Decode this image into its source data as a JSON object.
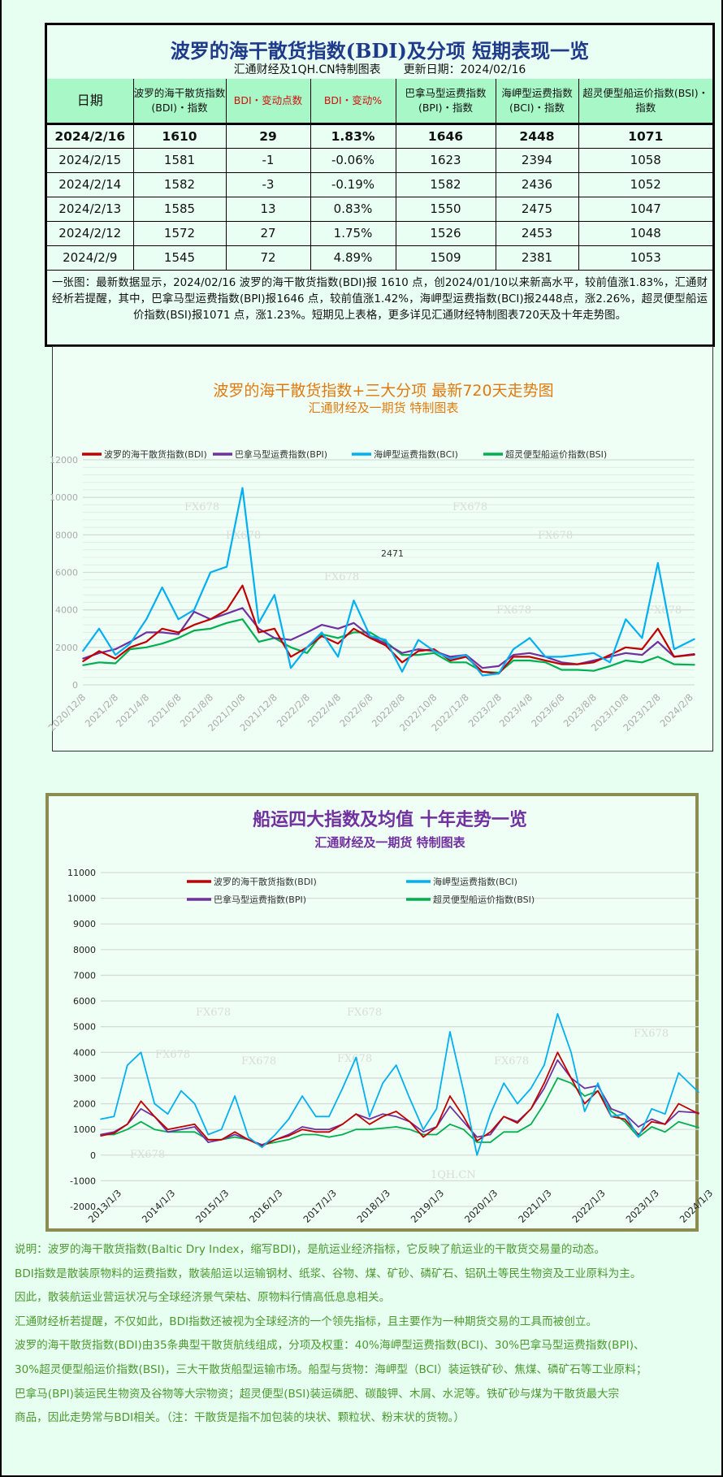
{
  "summary_table": {
    "title": "波罗的海干散货指数(BDI)及分项 短期表现一览",
    "subtitle": "汇通财经及1QH.CN特制图表　　更新日期：2024/02/16",
    "headers": [
      "日期",
      "波罗的海干散货指数(BDI)・指数",
      "BDI・变动点数",
      "BDI・变动%",
      "巴拿马型运费指数(BPI)・指数",
      "海岬型运费指数(BCI)・指数",
      "超灵便型船运价指数(BSI)・指数"
    ],
    "rows": [
      [
        "2024/2/16",
        "1610",
        "29",
        "1.83%",
        "1646",
        "2448",
        "1071"
      ],
      [
        "2024/2/15",
        "1581",
        "-1",
        "-0.06%",
        "1623",
        "2394",
        "1058"
      ],
      [
        "2024/2/14",
        "1582",
        "-3",
        "-0.19%",
        "1582",
        "2436",
        "1052"
      ],
      [
        "2024/2/13",
        "1585",
        "13",
        "0.83%",
        "1550",
        "2475",
        "1047"
      ],
      [
        "2024/2/12",
        "1572",
        "27",
        "1.75%",
        "1526",
        "2453",
        "1048"
      ],
      [
        "2024/2/9",
        "1545",
        "72",
        "4.89%",
        "1509",
        "2381",
        "1053"
      ]
    ],
    "description": "一张图：最新数据显示，2024/02/16 波罗的海干散货指数(BDI)报 1610 点，创2024/01/10以来新高水平，较前值涨1.83%，汇通财经析若提醒，其中，巴拿马型运费指数(BPI)报1646 点，较前值涨1.42%，海岬型运费指数(BCI)报2448点，涨2.26%，超灵便型船运价指数(BSI)报1071 点，涨1.23%。短期见上表格，更多详见汇通财经特制图表720天及十年走势图。",
    "colors": {
      "header_bg": "#a8f7c6",
      "highlight_text": "#d01010",
      "title": "#1f3a8a"
    }
  },
  "chart_data": [
    {
      "type": "line",
      "title": "波罗的海干散货指数+三大分项  最新720天走势图",
      "subtitle": "汇通财经及一期货  特制图表",
      "title_color": "#e07a10",
      "ylim": [
        0,
        12000
      ],
      "yticks": [
        0,
        2000,
        4000,
        6000,
        8000,
        10000,
        12000
      ],
      "xticks": [
        "2020/12/8",
        "2021/2/8",
        "2021/4/8",
        "2021/6/8",
        "2021/8/8",
        "2021/10/8",
        "2021/12/8",
        "2022/2/8",
        "2022/4/8",
        "2022/6/8",
        "2022/8/8",
        "2022/10/8",
        "2022/12/8",
        "2023/2/8",
        "2023/4/8",
        "2023/6/8",
        "2023/8/8",
        "2023/10/8",
        "2023/12/8",
        "2024/2/8"
      ],
      "grid": true,
      "legend": "top",
      "annotation": "2471",
      "watermarks": [
        "FX678",
        "FX678",
        "FX678",
        "FX678",
        "FX678",
        "FX678",
        "FX678"
      ],
      "x": [
        "2020/12/8",
        "2021/1/8",
        "2021/2/8",
        "2021/3/8",
        "2021/4/8",
        "2021/5/8",
        "2021/6/8",
        "2021/7/8",
        "2021/8/8",
        "2021/9/8",
        "2021/10/8",
        "2021/11/8",
        "2021/12/8",
        "2022/1/8",
        "2022/2/8",
        "2022/3/8",
        "2022/4/8",
        "2022/5/8",
        "2022/6/8",
        "2022/7/8",
        "2022/8/8",
        "2022/9/8",
        "2022/10/8",
        "2022/11/8",
        "2022/12/8",
        "2023/1/8",
        "2023/2/8",
        "2023/3/8",
        "2023/4/8",
        "2023/5/8",
        "2023/6/8",
        "2023/7/8",
        "2023/8/8",
        "2023/9/8",
        "2023/10/8",
        "2023/11/8",
        "2023/12/8",
        "2024/1/8",
        "2024/2/16"
      ],
      "series": [
        {
          "name": "波罗的海干散货指数(BDI)",
          "color": "#c00000",
          "values": [
            1250,
            1800,
            1400,
            2000,
            2300,
            3000,
            2800,
            3200,
            3500,
            4000,
            5300,
            2800,
            3000,
            1500,
            2000,
            2600,
            2200,
            3000,
            2500,
            2100,
            1200,
            1800,
            1900,
            1300,
            1500,
            700,
            600,
            1500,
            1500,
            1300,
            1100,
            1100,
            1200,
            1600,
            2000,
            1900,
            3000,
            1500,
            1610
          ]
        },
        {
          "name": "巴拿马型运费指数(BPI)",
          "color": "#7030a0",
          "values": [
            1400,
            1700,
            1900,
            2300,
            2800,
            2800,
            2700,
            3900,
            3500,
            3800,
            4100,
            3000,
            2500,
            2400,
            2800,
            3200,
            3000,
            3300,
            2600,
            2200,
            1700,
            1900,
            1800,
            1500,
            1600,
            900,
            1000,
            1600,
            1700,
            1500,
            1200,
            1100,
            1300,
            1500,
            1700,
            1600,
            2300,
            1500,
            1646
          ]
        },
        {
          "name": "海岬型运费指数(BCI)",
          "color": "#00b0f0",
          "values": [
            1800,
            3000,
            1600,
            2200,
            3500,
            5200,
            3500,
            4000,
            6000,
            6300,
            10500,
            3300,
            4800,
            900,
            2000,
            2800,
            1500,
            4500,
            2600,
            2400,
            700,
            2400,
            1800,
            1400,
            1600,
            500,
            600,
            1900,
            2500,
            1500,
            1500,
            1600,
            1700,
            1200,
            3500,
            2500,
            6500,
            1900,
            2448
          ]
        },
        {
          "name": "超灵便型船运价指数(BSI)",
          "color": "#00b050",
          "values": [
            1050,
            1200,
            1150,
            1900,
            2000,
            2200,
            2500,
            2900,
            3000,
            3300,
            3500,
            2300,
            2500,
            2000,
            1700,
            2700,
            2500,
            2800,
            2800,
            2300,
            1600,
            1600,
            1700,
            1200,
            1200,
            700,
            650,
            1300,
            1300,
            1200,
            800,
            800,
            750,
            1000,
            1300,
            1200,
            1500,
            1100,
            1071
          ]
        }
      ]
    },
    {
      "type": "line",
      "title": "船运四大指数及均值 十年走势一览",
      "subtitle": "汇通财经及一期货 特制图表",
      "title_color": "#7030a0",
      "ylim": [
        -2000,
        11000
      ],
      "yticks": [
        -2000,
        -1000,
        0,
        1000,
        2000,
        3000,
        4000,
        5000,
        6000,
        7000,
        8000,
        9000,
        10000,
        11000
      ],
      "xticks": [
        "2013/1/3",
        "2014/1/3",
        "2015/1/3",
        "2016/1/3",
        "2017/1/3",
        "2018/1/3",
        "2019/1/3",
        "2020/1/3",
        "2021/1/3",
        "2022/1/3",
        "2023/1/3",
        "2024/1/3"
      ],
      "grid": true,
      "legend": "top",
      "watermarks": [
        "FX678",
        "FX678",
        "FX678",
        "FX678",
        "FX678",
        "FX678",
        "FX678",
        "FX678",
        "1QH.CN"
      ],
      "x": [
        "2013/1/3",
        "2013/4/3",
        "2013/7/3",
        "2013/10/3",
        "2014/1/3",
        "2014/4/3",
        "2014/7/3",
        "2014/10/3",
        "2015/1/3",
        "2015/4/3",
        "2015/7/3",
        "2015/10/3",
        "2016/1/3",
        "2016/4/3",
        "2016/7/3",
        "2016/10/3",
        "2017/1/3",
        "2017/4/3",
        "2017/7/3",
        "2017/10/3",
        "2018/1/3",
        "2018/4/3",
        "2018/7/3",
        "2018/10/3",
        "2019/1/3",
        "2019/4/3",
        "2019/7/3",
        "2019/10/3",
        "2020/1/3",
        "2020/4/3",
        "2020/7/3",
        "2020/10/3",
        "2021/1/3",
        "2021/4/3",
        "2021/7/3",
        "2021/10/3",
        "2022/1/3",
        "2022/4/3",
        "2022/7/3",
        "2022/10/3",
        "2023/1/3",
        "2023/4/3",
        "2023/7/3",
        "2023/10/3",
        "2024/2/16"
      ],
      "series": [
        {
          "name": "波罗的海干散货指数(BDI)",
          "color": "#c00000",
          "values": [
            750,
            850,
            1200,
            2100,
            1500,
            1000,
            1100,
            1200,
            600,
            600,
            900,
            600,
            350,
            600,
            750,
            1000,
            900,
            900,
            1200,
            1600,
            1200,
            1500,
            1700,
            1300,
            700,
            1100,
            2300,
            1500,
            550,
            900,
            1500,
            1250,
            1800,
            2800,
            4000,
            3000,
            2000,
            2500,
            1500,
            1400,
            800,
            1300,
            1200,
            2000,
            1610
          ]
        },
        {
          "name": "巴拿马型运费指数(BPI)",
          "color": "#7030a0",
          "values": [
            800,
            900,
            1200,
            1800,
            1500,
            900,
            1000,
            1100,
            500,
            600,
            800,
            600,
            400,
            600,
            800,
            1100,
            1000,
            1000,
            1200,
            1600,
            1400,
            1600,
            1500,
            1300,
            900,
            1100,
            1900,
            1300,
            700,
            800,
            1500,
            1300,
            1800,
            2600,
            3700,
            3000,
            2600,
            2700,
            1800,
            1600,
            1100,
            1400,
            1200,
            1700,
            1646
          ]
        },
        {
          "name": "海岬型运费指数(BCI)",
          "color": "#00b0f0",
          "values": [
            1400,
            1500,
            3500,
            4000,
            2000,
            1600,
            2500,
            2000,
            800,
            1000,
            2300,
            700,
            300,
            800,
            1400,
            2300,
            1500,
            1500,
            2600,
            3800,
            1500,
            2800,
            3500,
            2200,
            1000,
            1800,
            4800,
            2500,
            0,
            1600,
            2800,
            2000,
            2600,
            3500,
            5500,
            4000,
            1700,
            2800,
            1500,
            1600,
            700,
            1800,
            1600,
            3200,
            2448
          ]
        },
        {
          "name": "超灵便型船运价指数(BSI)",
          "color": "#00b050",
          "values": [
            800,
            800,
            1000,
            1300,
            1000,
            900,
            900,
            900,
            600,
            600,
            700,
            600,
            400,
            500,
            600,
            800,
            800,
            700,
            800,
            1000,
            1000,
            1050,
            1100,
            1000,
            800,
            800,
            1200,
            1000,
            500,
            500,
            900,
            900,
            1200,
            2000,
            3000,
            2800,
            2300,
            2500,
            1700,
            1300,
            700,
            1100,
            900,
            1300,
            1071
          ]
        }
      ]
    }
  ],
  "notes": [
    "说明：波罗的海干散货指数(Baltic Dry Index，缩写BDI)，是航运业经济指标，它反映了航运业的干散货交易量的动态。",
    "BDI指数是散装原物料的运费指数，散装船运以运输钢材、纸浆、谷物、煤、矿砂、磷矿石、铝矾土等民生物资及工业原料为主。",
    "因此，散装航运业营运状况与全球经济景气荣枯、原物料行情高低息息相关。",
    "汇通财经析若提醒，不仅如此，BDI指数还被视为全球经济的一个领先指标，且主要作为一种期货交易的工具而被创立。",
    "波罗的海干散货指数(BDI)由35条典型干散货航线组成，分项及权重：40%海岬型运费指数(BCI)、30%巴拿马型运费指数(BPI)、",
    "30%超灵便型船运价指数(BSI)，三大干散货船型运输市场。船型与货物：海岬型（BCI）装运铁矿砂、焦煤、磷矿石等工业原料；",
    "巴拿马(BPI)装运民生物资及谷物等大宗物资；超灵便型(BSI)装运磷肥、碳酸钾、木屑、水泥等。铁矿砂与煤为干散货最大宗",
    "商品，因此走势常与BDI相关。（注：干散货是指不加包装的块状、颗粒状、粉末状的货物。）"
  ],
  "notes_color": "#4b9a2e"
}
